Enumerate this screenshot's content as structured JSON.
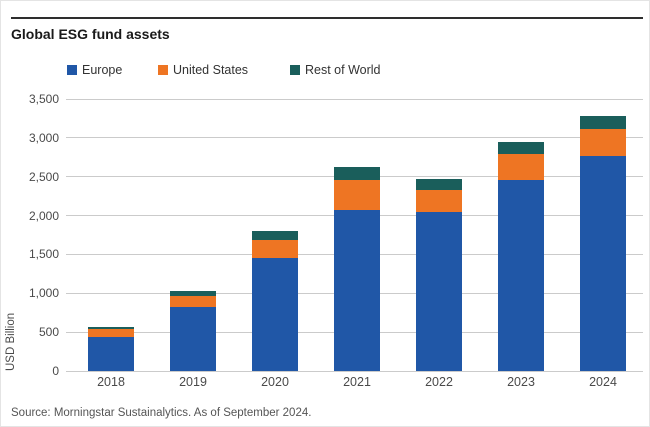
{
  "title": "Global ESG fund assets",
  "footer": "Source: Morningstar Sustainalytics. As of September 2024.",
  "colors": {
    "europe": "#2057a7",
    "united_states": "#ee7523",
    "rest_of_world": "#1a5e5b",
    "gridline": "#cbcbcb",
    "title_text": "#1a1a1a",
    "axis_text": "#4a4a4a"
  },
  "legend": {
    "items": [
      {
        "label": "Europe",
        "color": "#2057a7"
      },
      {
        "label": "United States",
        "color": "#ee7523"
      },
      {
        "label": "Rest of World",
        "color": "#1a5e5b"
      }
    ]
  },
  "chart_data": {
    "type": "bar",
    "stacked": true,
    "title": "Global ESG fund assets",
    "categories": [
      "2018",
      "2019",
      "2020",
      "2021",
      "2022",
      "2023",
      "2024"
    ],
    "series": [
      {
        "name": "Europe",
        "color": "#2057a7",
        "values": [
          440,
          825,
          1460,
          2075,
          2050,
          2455,
          2770
        ]
      },
      {
        "name": "United States",
        "color": "#ee7523",
        "values": [
          95,
          135,
          230,
          380,
          280,
          335,
          345
        ]
      },
      {
        "name": "Rest of World",
        "color": "#1a5e5b",
        "values": [
          35,
          70,
          110,
          175,
          140,
          160,
          170
        ]
      }
    ],
    "xlabel": "",
    "ylabel": "USD Billion",
    "ylim": [
      0,
      3500
    ],
    "yticks": [
      0,
      500,
      1000,
      1500,
      2000,
      2500,
      3000,
      3500
    ],
    "ytick_labels": [
      "0",
      "500",
      "1,000",
      "1,500",
      "2,000",
      "2,500",
      "3,000",
      "3,500"
    ],
    "grid": true,
    "legend_position": "top"
  }
}
